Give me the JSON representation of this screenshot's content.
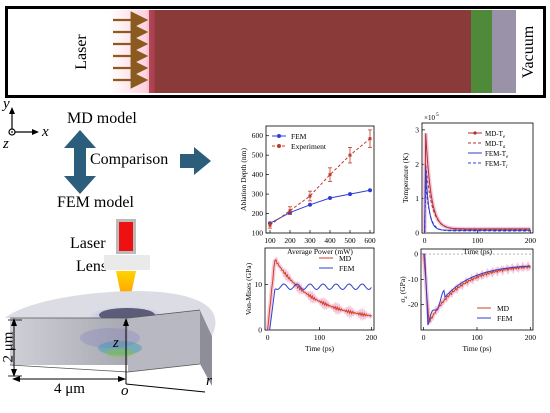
{
  "md_panel": {
    "laser_label": "Laser",
    "vacuum_label": "Vacuum",
    "colors": {
      "sample": "#8b3a3a",
      "layer1": "#4f8a3a",
      "layer2": "#9a92a8",
      "arrow": "#8a5a1e"
    }
  },
  "axes": {
    "y": "y",
    "x": "x",
    "z": "z"
  },
  "labels": {
    "md_model": "MD model",
    "fem_model": "FEM model",
    "comparison": "Comparison",
    "laser": "Laser",
    "lens": "Lens"
  },
  "geometry_labels": {
    "height": "2 μm",
    "radius": "4 μm",
    "z_axis": "z",
    "origin": "o",
    "r_axis": "r"
  },
  "chart_data": [
    {
      "type": "line",
      "id": "ablation",
      "xlabel": "Average Power (mW)",
      "ylabel": "Ablation Depth (nm)",
      "xlim": [
        80,
        620
      ],
      "ylim": [
        100,
        650
      ],
      "xticks": [
        100,
        200,
        300,
        400,
        500,
        600
      ],
      "yticks": [
        100,
        200,
        300,
        400,
        500,
        600
      ],
      "legend_position": "top-left",
      "series": [
        {
          "name": "FEM",
          "color": "#2f3fd0",
          "x": [
            100,
            200,
            300,
            400,
            500,
            600
          ],
          "y": [
            150,
            205,
            245,
            280,
            300,
            320
          ]
        },
        {
          "name": "Experiment",
          "color": "#c0392b",
          "dashed": true,
          "x": [
            100,
            200,
            300,
            400,
            500,
            600
          ],
          "y": [
            140,
            215,
            290,
            400,
            500,
            585
          ],
          "err": [
            15,
            20,
            25,
            35,
            40,
            45
          ]
        }
      ]
    },
    {
      "type": "line",
      "id": "temperature",
      "xlabel": "Time (ps)",
      "ylabel": "Temperature (K)",
      "exponent_label": "×10",
      "exponent_power": "5",
      "xlim": [
        -5,
        205
      ],
      "ylim": [
        0,
        3.2
      ],
      "xticks": [
        0,
        100,
        200
      ],
      "yticks": [
        0,
        1,
        2,
        3
      ],
      "legend_position": "top-right",
      "series": [
        {
          "name": "MD-T",
          "sub": "e",
          "color": "#b03030",
          "style": "solid-marker"
        },
        {
          "name": "MD-T",
          "sub": "a",
          "color": "#b03030",
          "style": "dashed"
        },
        {
          "name": "FEM-T",
          "sub": "e",
          "color": "#2f3fd0",
          "style": "solid"
        },
        {
          "name": "FEM-T",
          "sub": "l",
          "color": "#2f3fd0",
          "style": "dashed"
        }
      ]
    },
    {
      "type": "line",
      "id": "vonmises",
      "xlabel": "Time (ps)",
      "ylabel": "Von-Mises (GPa)",
      "xlim": [
        -5,
        205
      ],
      "ylim": [
        0,
        18
      ],
      "xticks": [
        0,
        100,
        200
      ],
      "yticks": [
        0,
        10
      ],
      "legend_position": "top-right",
      "series": [
        {
          "name": "MD",
          "color": "#d04020"
        },
        {
          "name": "FEM",
          "color": "#2f3fd0"
        }
      ]
    },
    {
      "type": "line",
      "id": "sigma",
      "xlabel": "Time (ps)",
      "ylabel": "σ",
      "ylabel_sub": "z",
      "ylabel_unit": " (GPa)",
      "xlim": [
        -5,
        205
      ],
      "ylim": [
        -30,
        2
      ],
      "xticks": [
        0,
        100,
        200
      ],
      "yticks": [
        -20,
        -10,
        0
      ],
      "legend_position": "bottom-right",
      "series": [
        {
          "name": "MD",
          "color": "#d04020"
        },
        {
          "name": "FEM",
          "color": "#2f3fd0"
        }
      ]
    }
  ]
}
